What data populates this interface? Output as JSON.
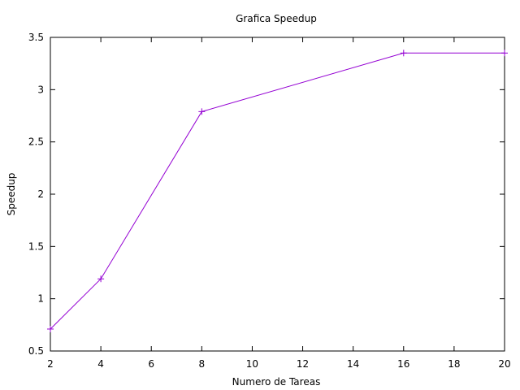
{
  "chart_data": {
    "type": "line",
    "title": "Grafica Speedup",
    "xlabel": "Numero de Tareas",
    "ylabel": "Speedup",
    "xlim": [
      2,
      20
    ],
    "ylim": [
      0.5,
      3.5
    ],
    "xticks": [
      2,
      4,
      6,
      8,
      10,
      12,
      14,
      16,
      18,
      20
    ],
    "xtick_labels": [
      "2",
      "4",
      "6",
      "8",
      "10",
      "12",
      "14",
      "16",
      "18",
      "20"
    ],
    "yticks": [
      0.5,
      1,
      1.5,
      2,
      2.5,
      3,
      3.5
    ],
    "ytick_labels": [
      "0.5",
      "1",
      "1.5",
      "2",
      "2.5",
      "3",
      "3.5"
    ],
    "grid": false,
    "legend": "none",
    "series": [
      {
        "color": "#9400d3",
        "marker": "plus",
        "x": [
          2,
          4,
          8,
          16,
          20
        ],
        "y": [
          0.71,
          1.19,
          2.79,
          3.35,
          3.35
        ]
      }
    ]
  }
}
